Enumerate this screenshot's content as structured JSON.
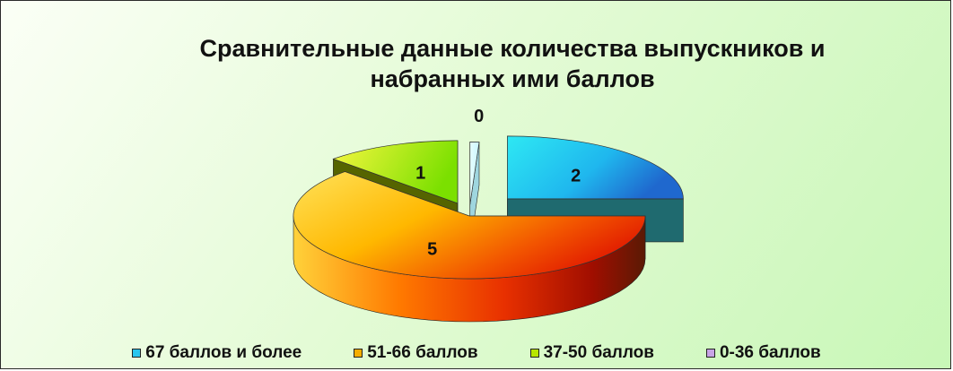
{
  "chart_data": {
    "type": "pie",
    "title_lines": [
      "Сравнительные данные количества выпускников и",
      "набранных ими баллов"
    ],
    "categories": [
      "67 баллов и более",
      "51-66 баллов",
      "37-50 баллов",
      "0-36 баллов"
    ],
    "values": [
      2,
      5,
      1,
      0
    ],
    "data_labels": [
      "2",
      "5",
      "1",
      "0"
    ],
    "colors": [
      "#29c5ef",
      "#f5ad00",
      "#b8e600",
      "#c8a3e6"
    ],
    "legend_position": "bottom",
    "style": "3d-exploded"
  }
}
